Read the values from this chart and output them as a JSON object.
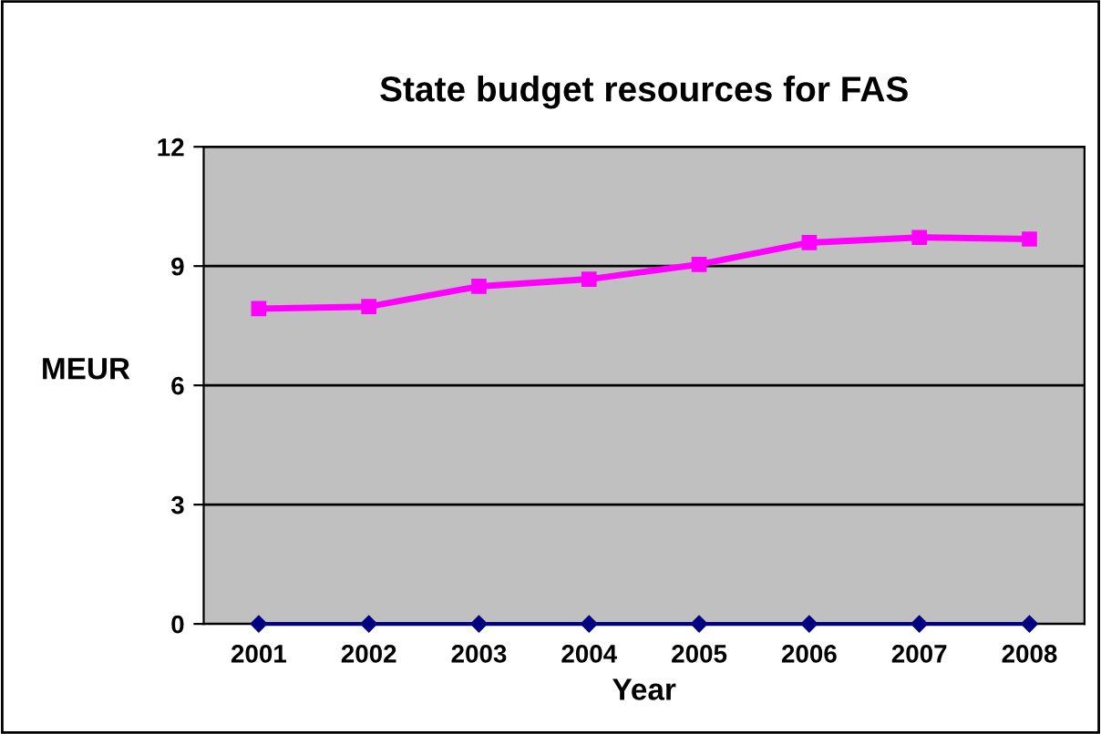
{
  "chart_data": {
    "type": "line",
    "title": "State budget resources for FAS",
    "xlabel": "Year",
    "ylabel": "MEUR",
    "categories": [
      "2001",
      "2002",
      "2003",
      "2004",
      "2005",
      "2006",
      "2007",
      "2008"
    ],
    "series": [
      {
        "color": "#ff00ff",
        "marker": "square",
        "values": [
          7.93,
          7.98,
          8.49,
          8.67,
          9.04,
          9.59,
          9.72,
          9.68
        ]
      },
      {
        "color": "#000080",
        "marker": "diamond",
        "values": [
          0,
          0,
          0,
          0,
          0,
          0,
          0,
          0
        ]
      }
    ],
    "ylim": [
      0,
      12
    ],
    "yticks": [
      0,
      3,
      6,
      9,
      12
    ],
    "grid": "y",
    "legend": false
  }
}
